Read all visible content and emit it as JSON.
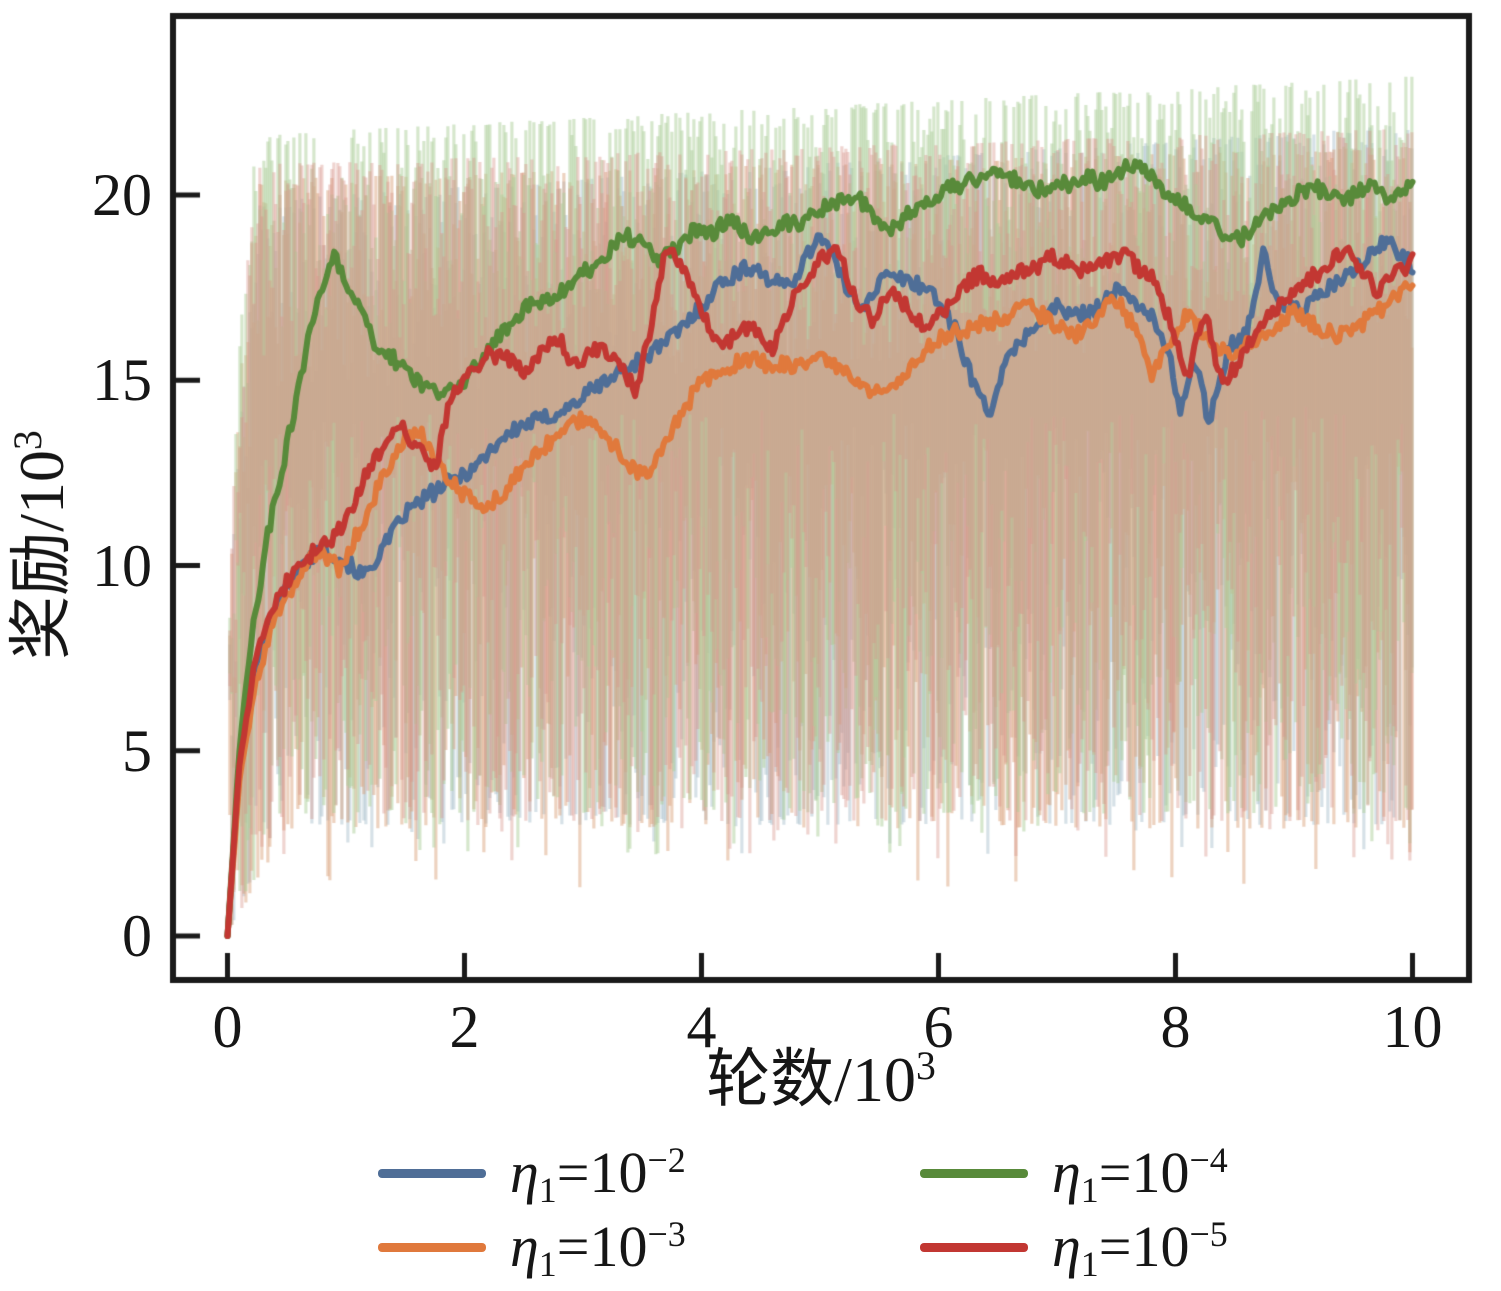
{
  "figure": {
    "background": "#ffffff"
  },
  "chart_data": {
    "type": "line",
    "title": "",
    "xlabel": "轮数/10³",
    "ylabel": "奖励/10³",
    "xlabel_base": "轮数/10",
    "xlabel_exp": "3",
    "ylabel_base": "奖励/10",
    "ylabel_exp": "3",
    "xlim": [
      0,
      10
    ],
    "ylim": [
      0,
      25
    ],
    "grid": false,
    "legend_position": "below-two-columns",
    "legend_order": [
      0,
      2,
      1,
      3
    ],
    "x_ticks": [
      {
        "value": 0,
        "label": "0"
      },
      {
        "value": 2,
        "label": "2"
      },
      {
        "value": 4,
        "label": "4"
      },
      {
        "value": 6,
        "label": "6"
      },
      {
        "value": 8,
        "label": "8"
      },
      {
        "value": 10,
        "label": "10"
      }
    ],
    "y_ticks": [
      {
        "value": 0,
        "label": "0"
      },
      {
        "value": 5,
        "label": "5"
      },
      {
        "value": 10,
        "label": "10"
      },
      {
        "value": 15,
        "label": "15"
      },
      {
        "value": 20,
        "label": "20"
      }
    ],
    "series": [
      {
        "name": "eta1=1e-2",
        "legend": {
          "symbol": "η",
          "sub": "1",
          "base": "=10",
          "exp": "−2"
        },
        "color": "#4f6e97",
        "noise_color": "#9db7c6",
        "noise": {
          "alpha": 0.42,
          "hi0": 19.8,
          "hi1": 21.9,
          "lo": 3.0,
          "spike": 2.2
        },
        "points": [
          [
            0,
            0
          ],
          [
            0.1,
            4.5
          ],
          [
            0.25,
            7.6
          ],
          [
            0.4,
            8.8
          ],
          [
            0.6,
            9.9
          ],
          [
            0.8,
            10.5
          ],
          [
            1.0,
            10.1
          ],
          [
            1.15,
            9.7
          ],
          [
            1.3,
            10.4
          ],
          [
            1.5,
            11.4
          ],
          [
            1.7,
            11.9
          ],
          [
            1.9,
            12.3
          ],
          [
            2.1,
            12.7
          ],
          [
            2.3,
            13.4
          ],
          [
            2.5,
            13.8
          ],
          [
            2.7,
            14.0
          ],
          [
            2.9,
            14.3
          ],
          [
            3.1,
            14.8
          ],
          [
            3.35,
            15.3
          ],
          [
            3.6,
            15.8
          ],
          [
            3.8,
            16.3
          ],
          [
            4.0,
            17.0
          ],
          [
            4.15,
            17.6
          ],
          [
            4.3,
            17.9
          ],
          [
            4.45,
            18.1
          ],
          [
            4.6,
            17.6
          ],
          [
            4.75,
            17.6
          ],
          [
            4.9,
            18.4
          ],
          [
            5.0,
            19.0
          ],
          [
            5.1,
            18.4
          ],
          [
            5.2,
            17.6
          ],
          [
            5.35,
            17.0
          ],
          [
            5.55,
            17.8
          ],
          [
            5.75,
            17.7
          ],
          [
            5.95,
            17.4
          ],
          [
            6.15,
            16.3
          ],
          [
            6.3,
            14.9
          ],
          [
            6.42,
            14.1
          ],
          [
            6.55,
            15.3
          ],
          [
            6.7,
            16.1
          ],
          [
            6.85,
            16.6
          ],
          [
            7.0,
            17.0
          ],
          [
            7.15,
            16.7
          ],
          [
            7.3,
            16.9
          ],
          [
            7.5,
            17.4
          ],
          [
            7.65,
            17.2
          ],
          [
            7.8,
            16.7
          ],
          [
            7.95,
            15.6
          ],
          [
            8.05,
            14.1
          ],
          [
            8.15,
            15.7
          ],
          [
            8.28,
            13.9
          ],
          [
            8.45,
            15.9
          ],
          [
            8.6,
            16.3
          ],
          [
            8.75,
            18.5
          ],
          [
            8.85,
            17.1
          ],
          [
            9.0,
            16.9
          ],
          [
            9.15,
            17.1
          ],
          [
            9.3,
            17.5
          ],
          [
            9.5,
            17.9
          ],
          [
            9.65,
            18.4
          ],
          [
            9.8,
            18.8
          ],
          [
            9.9,
            18.4
          ],
          [
            10,
            18.1
          ]
        ]
      },
      {
        "name": "eta1=1e-3",
        "legend": {
          "symbol": "η",
          "sub": "1",
          "base": "=10",
          "exp": "−3"
        },
        "color": "#e0793c",
        "noise_color": "#d89c76",
        "noise": {
          "alpha": 0.46,
          "hi0": 20.4,
          "hi1": 21.3,
          "lo": 2.9,
          "spike": 1.3
        },
        "points": [
          [
            0,
            0
          ],
          [
            0.1,
            4.2
          ],
          [
            0.25,
            7.0
          ],
          [
            0.4,
            8.5
          ],
          [
            0.6,
            9.6
          ],
          [
            0.75,
            10.4
          ],
          [
            0.95,
            9.9
          ],
          [
            1.1,
            10.9
          ],
          [
            1.3,
            12.3
          ],
          [
            1.5,
            13.4
          ],
          [
            1.65,
            13.5
          ],
          [
            1.8,
            12.6
          ],
          [
            2.0,
            11.9
          ],
          [
            2.15,
            11.5
          ],
          [
            2.3,
            11.9
          ],
          [
            2.5,
            12.6
          ],
          [
            2.7,
            13.3
          ],
          [
            2.9,
            13.8
          ],
          [
            3.05,
            14.0
          ],
          [
            3.2,
            13.5
          ],
          [
            3.4,
            12.7
          ],
          [
            3.55,
            12.4
          ],
          [
            3.7,
            13.3
          ],
          [
            3.85,
            14.2
          ],
          [
            4.0,
            15.0
          ],
          [
            4.2,
            15.3
          ],
          [
            4.4,
            15.6
          ],
          [
            4.6,
            15.4
          ],
          [
            4.8,
            15.4
          ],
          [
            5.0,
            15.6
          ],
          [
            5.2,
            15.2
          ],
          [
            5.4,
            14.7
          ],
          [
            5.55,
            14.6
          ],
          [
            5.75,
            15.3
          ],
          [
            5.95,
            16.0
          ],
          [
            6.15,
            16.3
          ],
          [
            6.35,
            16.5
          ],
          [
            6.55,
            16.7
          ],
          [
            6.75,
            17.0
          ],
          [
            6.95,
            16.6
          ],
          [
            7.15,
            16.2
          ],
          [
            7.3,
            16.6
          ],
          [
            7.5,
            17.2
          ],
          [
            7.65,
            16.4
          ],
          [
            7.8,
            15.2
          ],
          [
            7.95,
            16.1
          ],
          [
            8.1,
            16.8
          ],
          [
            8.3,
            16.0
          ],
          [
            8.5,
            15.6
          ],
          [
            8.65,
            16.1
          ],
          [
            8.8,
            16.3
          ],
          [
            9.0,
            16.9
          ],
          [
            9.2,
            16.4
          ],
          [
            9.4,
            16.2
          ],
          [
            9.6,
            16.6
          ],
          [
            9.8,
            17.1
          ],
          [
            9.95,
            17.5
          ],
          [
            10,
            17.6
          ]
        ]
      },
      {
        "name": "eta1=1e-4",
        "legend": {
          "symbol": "η",
          "sub": "1",
          "base": "=10",
          "exp": "−4"
        },
        "color": "#588a3a",
        "noise_color": "#aecf9c",
        "noise": {
          "alpha": 0.5,
          "hi0": 21.6,
          "hi1": 23.2,
          "lo": 3.3,
          "spike": 2.2
        },
        "points": [
          [
            0,
            0
          ],
          [
            0.1,
            5.0
          ],
          [
            0.2,
            8.0
          ],
          [
            0.35,
            11.0
          ],
          [
            0.5,
            13.2
          ],
          [
            0.65,
            15.6
          ],
          [
            0.8,
            17.6
          ],
          [
            0.9,
            18.3
          ],
          [
            1.0,
            17.7
          ],
          [
            1.1,
            17.0
          ],
          [
            1.25,
            16.0
          ],
          [
            1.4,
            15.6
          ],
          [
            1.55,
            15.1
          ],
          [
            1.7,
            14.8
          ],
          [
            1.85,
            14.6
          ],
          [
            2.0,
            15.0
          ],
          [
            2.15,
            15.6
          ],
          [
            2.3,
            16.2
          ],
          [
            2.45,
            16.8
          ],
          [
            2.6,
            17.1
          ],
          [
            2.75,
            17.3
          ],
          [
            2.9,
            17.6
          ],
          [
            3.05,
            18.0
          ],
          [
            3.2,
            18.4
          ],
          [
            3.35,
            18.9
          ],
          [
            3.5,
            18.7
          ],
          [
            3.65,
            18.2
          ],
          [
            3.8,
            18.6
          ],
          [
            3.95,
            19.1
          ],
          [
            4.1,
            19.0
          ],
          [
            4.25,
            19.4
          ],
          [
            4.4,
            18.9
          ],
          [
            4.55,
            18.9
          ],
          [
            4.7,
            19.2
          ],
          [
            4.85,
            19.3
          ],
          [
            5.0,
            19.6
          ],
          [
            5.15,
            19.8
          ],
          [
            5.3,
            20.0
          ],
          [
            5.45,
            19.4
          ],
          [
            5.6,
            19.1
          ],
          [
            5.75,
            19.5
          ],
          [
            5.9,
            19.8
          ],
          [
            6.05,
            20.1
          ],
          [
            6.2,
            20.3
          ],
          [
            6.35,
            20.5
          ],
          [
            6.5,
            20.7
          ],
          [
            6.65,
            20.4
          ],
          [
            6.8,
            20.1
          ],
          [
            6.95,
            20.2
          ],
          [
            7.1,
            20.3
          ],
          [
            7.25,
            20.5
          ],
          [
            7.4,
            20.3
          ],
          [
            7.55,
            20.7
          ],
          [
            7.7,
            20.9
          ],
          [
            7.85,
            20.3
          ],
          [
            8.0,
            19.9
          ],
          [
            8.2,
            19.4
          ],
          [
            8.4,
            19.0
          ],
          [
            8.55,
            18.8
          ],
          [
            8.7,
            19.3
          ],
          [
            8.9,
            19.7
          ],
          [
            9.05,
            20.1
          ],
          [
            9.2,
            20.2
          ],
          [
            9.35,
            19.9
          ],
          [
            9.5,
            20.0
          ],
          [
            9.65,
            20.2
          ],
          [
            9.8,
            19.9
          ],
          [
            9.9,
            20.1
          ],
          [
            10,
            20.3
          ]
        ]
      },
      {
        "name": "eta1=1e-5",
        "legend": {
          "symbol": "η",
          "sub": "1",
          "base": "=10",
          "exp": "−5"
        },
        "color": "#c23732",
        "noise_color": "#d6948a",
        "noise": {
          "alpha": 0.4,
          "hi0": 20.8,
          "hi1": 21.8,
          "lo": 3.1,
          "spike": 2.0
        },
        "points": [
          [
            0,
            0
          ],
          [
            0.1,
            4.6
          ],
          [
            0.25,
            7.8
          ],
          [
            0.4,
            9.0
          ],
          [
            0.55,
            9.8
          ],
          [
            0.7,
            10.3
          ],
          [
            0.85,
            10.6
          ],
          [
            1.0,
            11.2
          ],
          [
            1.15,
            12.3
          ],
          [
            1.3,
            13.1
          ],
          [
            1.45,
            13.8
          ],
          [
            1.6,
            13.2
          ],
          [
            1.75,
            12.6
          ],
          [
            1.9,
            14.7
          ],
          [
            2.05,
            15.3
          ],
          [
            2.2,
            15.7
          ],
          [
            2.35,
            15.6
          ],
          [
            2.5,
            15.3
          ],
          [
            2.65,
            15.8
          ],
          [
            2.8,
            16.1
          ],
          [
            2.95,
            15.3
          ],
          [
            3.1,
            15.9
          ],
          [
            3.3,
            15.5
          ],
          [
            3.45,
            14.7
          ],
          [
            3.6,
            16.8
          ],
          [
            3.7,
            18.5
          ],
          [
            3.8,
            18.3
          ],
          [
            3.95,
            17.3
          ],
          [
            4.1,
            16.2
          ],
          [
            4.2,
            15.9
          ],
          [
            4.35,
            16.5
          ],
          [
            4.5,
            16.2
          ],
          [
            4.6,
            15.9
          ],
          [
            4.75,
            17.0
          ],
          [
            4.9,
            17.9
          ],
          [
            5.05,
            18.4
          ],
          [
            5.15,
            18.5
          ],
          [
            5.3,
            17.2
          ],
          [
            5.45,
            16.6
          ],
          [
            5.6,
            17.5
          ],
          [
            5.75,
            16.9
          ],
          [
            5.9,
            16.3
          ],
          [
            6.05,
            16.9
          ],
          [
            6.2,
            17.5
          ],
          [
            6.35,
            17.9
          ],
          [
            6.5,
            17.7
          ],
          [
            6.65,
            17.9
          ],
          [
            6.8,
            18.0
          ],
          [
            6.95,
            18.3
          ],
          [
            7.1,
            18.1
          ],
          [
            7.25,
            17.9
          ],
          [
            7.4,
            18.2
          ],
          [
            7.55,
            18.4
          ],
          [
            7.7,
            18.0
          ],
          [
            7.85,
            17.6
          ],
          [
            8.0,
            16.1
          ],
          [
            8.1,
            15.0
          ],
          [
            8.25,
            16.9
          ],
          [
            8.4,
            14.8
          ],
          [
            8.55,
            15.6
          ],
          [
            8.7,
            16.4
          ],
          [
            8.85,
            16.9
          ],
          [
            9.0,
            17.4
          ],
          [
            9.15,
            17.8
          ],
          [
            9.3,
            18.1
          ],
          [
            9.45,
            18.6
          ],
          [
            9.6,
            17.9
          ],
          [
            9.7,
            17.3
          ],
          [
            9.85,
            17.9
          ],
          [
            10,
            18.2
          ]
        ]
      }
    ]
  }
}
